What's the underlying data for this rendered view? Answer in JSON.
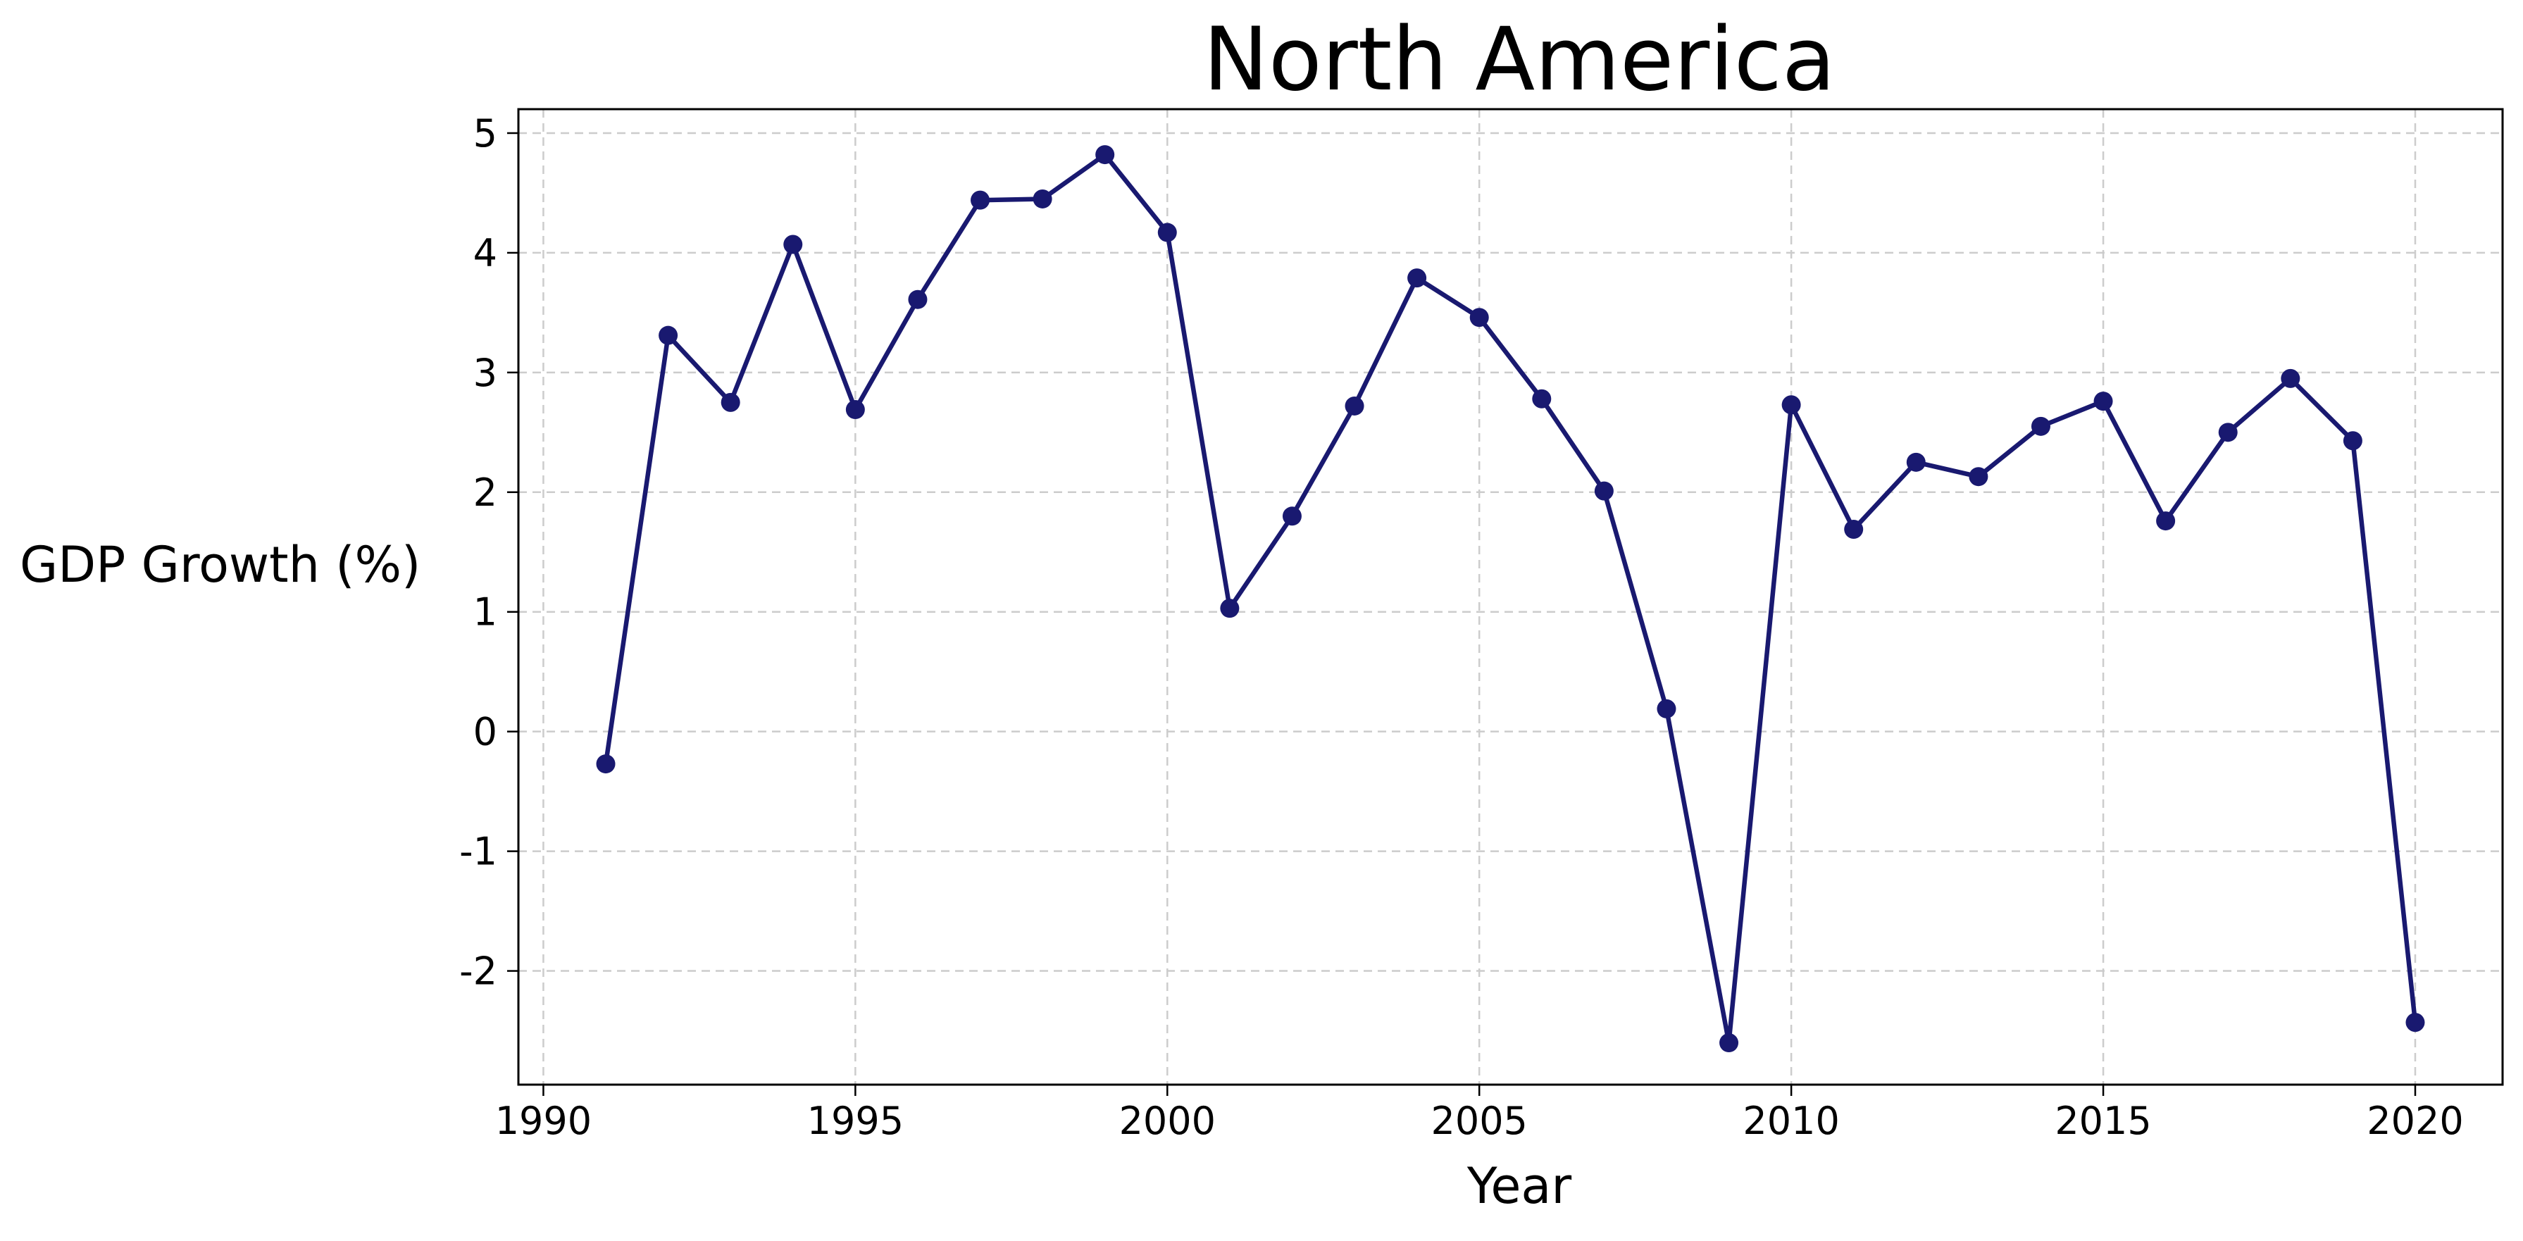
{
  "chart_data": {
    "type": "line",
    "title": "North America",
    "xlabel": "Year",
    "ylabel": "GDP Growth (%)",
    "xlim": [
      1989.6,
      2021.4
    ],
    "ylim": [
      -2.95,
      5.2
    ],
    "xticks": [
      1990,
      1995,
      2000,
      2005,
      2010,
      2015,
      2020
    ],
    "yticks": [
      -2,
      -1,
      0,
      1,
      2,
      3,
      4,
      5
    ],
    "grid": true,
    "legend": "none",
    "marker": "circle",
    "colors": {
      "series": "#191970"
    },
    "series": [
      {
        "x": [
          1991,
          1992,
          1993,
          1994,
          1995,
          1996,
          1997,
          1998,
          1999,
          2000,
          2001,
          2002,
          2003,
          2004,
          2005,
          2006,
          2007,
          2008,
          2009,
          2010,
          2011,
          2012,
          2013,
          2014,
          2015,
          2016,
          2017,
          2018,
          2019,
          2020
        ],
        "values": [
          -0.27,
          3.31,
          2.75,
          4.07,
          2.69,
          3.61,
          4.44,
          4.45,
          4.82,
          4.17,
          1.03,
          1.8,
          2.72,
          3.79,
          3.46,
          2.78,
          2.01,
          0.19,
          -2.6,
          2.73,
          1.69,
          2.25,
          2.13,
          2.55,
          2.76,
          1.76,
          2.5,
          2.95,
          2.43,
          -2.43
        ]
      }
    ]
  }
}
